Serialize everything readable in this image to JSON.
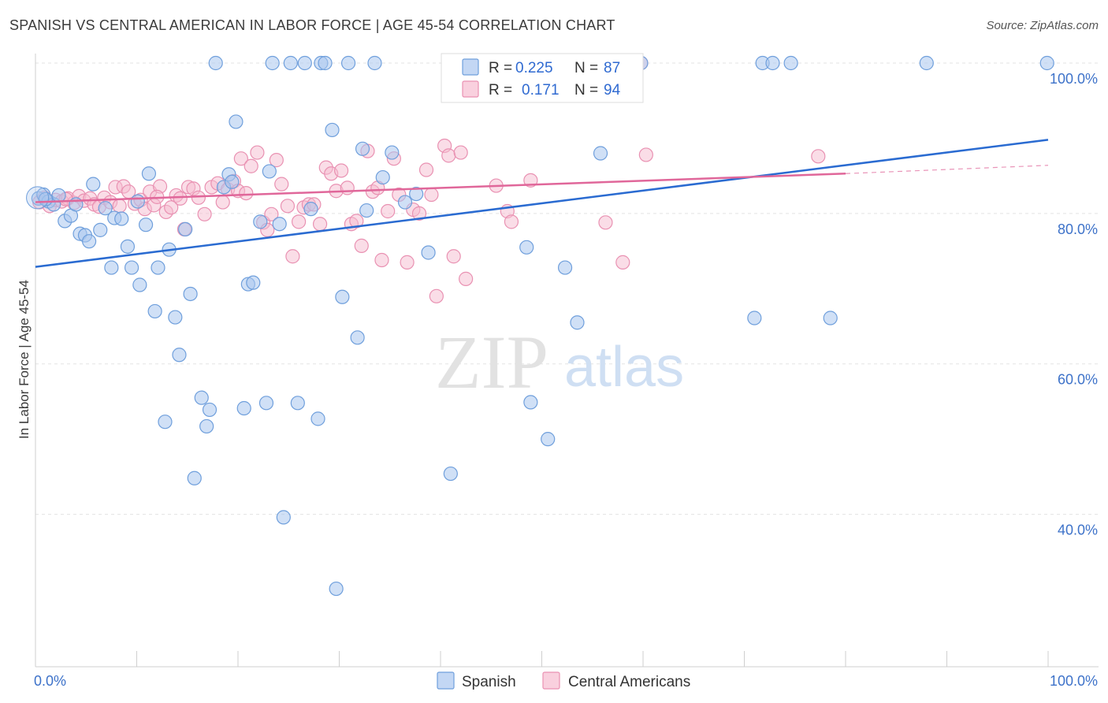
{
  "header": {
    "title": "SPANISH VS CENTRAL AMERICAN IN LABOR FORCE | AGE 45-54 CORRELATION CHART",
    "source": "Source: ZipAtlas.com"
  },
  "legend": {
    "r_label": "R =",
    "n_label": "N =",
    "spanish_r": "0.225",
    "spanish_n": "87",
    "central_r": "0.171",
    "central_n": "94"
  },
  "bottom_legend": {
    "spanish": "Spanish",
    "central": "Central Americans"
  },
  "watermark": {
    "zip": "ZIP",
    "atlas": "atlas"
  },
  "colors": {
    "spanish_fill": "#a9c6ef",
    "spanish_stroke": "#6f9fdc",
    "spanish_line": "#2a6bd1",
    "central_fill": "#f6bcd0",
    "central_stroke": "#e991b2",
    "central_line": "#e0679a",
    "tick_text": "#3d72c9",
    "grid": "#e3e3e3"
  },
  "chart_data": {
    "type": "scatter",
    "title": "SPANISH VS CENTRAL AMERICAN IN LABOR FORCE | AGE 45-54 CORRELATION CHART",
    "xlabel": "",
    "ylabel": "In Labor Force | Age 45-54",
    "xlim": [
      0,
      100
    ],
    "ylim": [
      20,
      102
    ],
    "x_tick_labels": [
      "0.0%",
      "100.0%"
    ],
    "y_ticks": [
      40,
      60,
      80,
      100
    ],
    "y_tick_labels": [
      "40.0%",
      "60.0%",
      "80.0%",
      "100.0%"
    ],
    "grid": true,
    "legend_position": "top-center",
    "series": [
      {
        "name": "Spanish",
        "r": 0.225,
        "n": 87,
        "trend": {
          "x": [
            0,
            100
          ],
          "y": [
            72.9,
            89.8
          ],
          "dashed_from": null
        },
        "points": [
          [
            0.3,
            82.0
          ],
          [
            0.8,
            82.5
          ],
          [
            1.3,
            81.6
          ],
          [
            1.8,
            81.2
          ],
          [
            2.3,
            82.4
          ],
          [
            2.9,
            79.0
          ],
          [
            3.5,
            79.7
          ],
          [
            4.0,
            81.2
          ],
          [
            4.4,
            77.3
          ],
          [
            4.9,
            77.1
          ],
          [
            5.3,
            76.3
          ],
          [
            5.7,
            83.9
          ],
          [
            6.4,
            77.8
          ],
          [
            6.9,
            80.7
          ],
          [
            7.5,
            72.8
          ],
          [
            7.8,
            79.4
          ],
          [
            8.5,
            79.3
          ],
          [
            9.1,
            75.6
          ],
          [
            9.5,
            72.8
          ],
          [
            10.1,
            81.6
          ],
          [
            10.3,
            70.5
          ],
          [
            10.9,
            78.5
          ],
          [
            11.2,
            85.3
          ],
          [
            11.8,
            67.0
          ],
          [
            12.1,
            72.8
          ],
          [
            12.8,
            52.3
          ],
          [
            13.2,
            75.2
          ],
          [
            13.8,
            66.2
          ],
          [
            14.2,
            61.2
          ],
          [
            14.8,
            77.9
          ],
          [
            15.3,
            69.3
          ],
          [
            15.7,
            44.8
          ],
          [
            16.4,
            55.5
          ],
          [
            16.9,
            51.7
          ],
          [
            17.2,
            53.9
          ],
          [
            17.8,
            100.0
          ],
          [
            18.6,
            83.5
          ],
          [
            19.1,
            85.2
          ],
          [
            19.4,
            84.2
          ],
          [
            19.8,
            92.2
          ],
          [
            20.6,
            54.1
          ],
          [
            21.0,
            70.6
          ],
          [
            21.5,
            70.8
          ],
          [
            22.2,
            78.9
          ],
          [
            22.8,
            54.8
          ],
          [
            23.1,
            85.6
          ],
          [
            23.4,
            100.0
          ],
          [
            24.1,
            78.6
          ],
          [
            24.5,
            39.6
          ],
          [
            25.2,
            100.0
          ],
          [
            25.9,
            54.8
          ],
          [
            26.6,
            100.0
          ],
          [
            27.2,
            80.6
          ],
          [
            27.9,
            52.7
          ],
          [
            28.2,
            100.0
          ],
          [
            28.6,
            100.0
          ],
          [
            29.3,
            91.1
          ],
          [
            29.7,
            30.1
          ],
          [
            30.3,
            68.9
          ],
          [
            30.9,
            100.0
          ],
          [
            31.8,
            63.5
          ],
          [
            32.3,
            88.6
          ],
          [
            32.7,
            80.4
          ],
          [
            33.5,
            100.0
          ],
          [
            34.3,
            84.8
          ],
          [
            35.2,
            88.1
          ],
          [
            36.5,
            81.5
          ],
          [
            37.6,
            82.6
          ],
          [
            38.8,
            74.8
          ],
          [
            41.0,
            45.4
          ],
          [
            48.1,
            100.0
          ],
          [
            48.5,
            75.5
          ],
          [
            48.9,
            54.9
          ],
          [
            50.6,
            50.0
          ],
          [
            52.3,
            72.8
          ],
          [
            52.8,
            100.0
          ],
          [
            53.5,
            65.5
          ],
          [
            55.8,
            88.0
          ],
          [
            59.8,
            100.0
          ],
          [
            71.0,
            66.1
          ],
          [
            71.8,
            100.0
          ],
          [
            72.8,
            100.0
          ],
          [
            74.6,
            100.0
          ],
          [
            78.5,
            66.1
          ],
          [
            88.0,
            100.0
          ],
          [
            99.9,
            100.0
          ],
          [
            1.0,
            81.9
          ]
        ]
      },
      {
        "name": "Central Americans",
        "r": 0.171,
        "n": 94,
        "trend": {
          "x": [
            0,
            80,
            100
          ],
          "y": [
            81.5,
            85.3,
            86.4
          ],
          "dashed_from": 80
        },
        "points": [
          [
            0.4,
            81.5
          ],
          [
            0.9,
            82.1
          ],
          [
            1.4,
            81.0
          ],
          [
            2.0,
            81.8
          ],
          [
            2.6,
            81.6
          ],
          [
            3.2,
            82.0
          ],
          [
            3.8,
            81.4
          ],
          [
            4.3,
            82.3
          ],
          [
            4.8,
            81.7
          ],
          [
            5.4,
            82.0
          ],
          [
            5.8,
            81.2
          ],
          [
            6.3,
            80.9
          ],
          [
            6.8,
            82.1
          ],
          [
            7.4,
            81.5
          ],
          [
            7.9,
            83.5
          ],
          [
            8.3,
            81.0
          ],
          [
            8.7,
            83.6
          ],
          [
            9.2,
            82.9
          ],
          [
            9.8,
            81.3
          ],
          [
            10.4,
            81.8
          ],
          [
            10.8,
            80.6
          ],
          [
            11.3,
            82.9
          ],
          [
            11.7,
            81.1
          ],
          [
            12.3,
            83.6
          ],
          [
            12.9,
            80.2
          ],
          [
            13.4,
            80.8
          ],
          [
            13.9,
            82.4
          ],
          [
            14.3,
            82.0
          ],
          [
            14.7,
            77.9
          ],
          [
            15.1,
            83.5
          ],
          [
            15.6,
            83.3
          ],
          [
            16.1,
            82.1
          ],
          [
            16.7,
            79.9
          ],
          [
            17.4,
            83.5
          ],
          [
            18.0,
            84.0
          ],
          [
            18.5,
            81.5
          ],
          [
            19.0,
            83.2
          ],
          [
            19.6,
            84.3
          ],
          [
            20.0,
            83.0
          ],
          [
            20.3,
            87.3
          ],
          [
            20.8,
            82.7
          ],
          [
            21.3,
            86.3
          ],
          [
            21.9,
            88.1
          ],
          [
            22.5,
            78.8
          ],
          [
            22.9,
            77.8
          ],
          [
            23.3,
            79.9
          ],
          [
            23.8,
            87.1
          ],
          [
            24.3,
            83.9
          ],
          [
            24.9,
            81.0
          ],
          [
            25.4,
            74.3
          ],
          [
            26.0,
            78.9
          ],
          [
            26.5,
            80.8
          ],
          [
            27.0,
            81.2
          ],
          [
            27.5,
            81.2
          ],
          [
            28.1,
            78.6
          ],
          [
            28.7,
            86.1
          ],
          [
            29.2,
            85.3
          ],
          [
            29.7,
            83.0
          ],
          [
            30.2,
            85.7
          ],
          [
            30.8,
            83.4
          ],
          [
            31.2,
            78.6
          ],
          [
            31.7,
            79.0
          ],
          [
            32.2,
            75.7
          ],
          [
            32.8,
            88.3
          ],
          [
            33.3,
            82.9
          ],
          [
            33.8,
            83.4
          ],
          [
            34.2,
            73.8
          ],
          [
            34.8,
            80.3
          ],
          [
            35.4,
            87.3
          ],
          [
            35.9,
            82.5
          ],
          [
            36.7,
            73.5
          ],
          [
            37.3,
            80.5
          ],
          [
            37.9,
            80.0
          ],
          [
            38.6,
            85.8
          ],
          [
            39.1,
            82.5
          ],
          [
            39.6,
            69.0
          ],
          [
            40.4,
            89.0
          ],
          [
            40.8,
            87.7
          ],
          [
            41.3,
            74.3
          ],
          [
            42.0,
            88.1
          ],
          [
            42.5,
            71.3
          ],
          [
            45.5,
            83.7
          ],
          [
            46.6,
            80.3
          ],
          [
            47.0,
            78.9
          ],
          [
            48.9,
            84.4
          ],
          [
            54.0,
            100.0
          ],
          [
            55.3,
            100.0
          ],
          [
            56.3,
            78.8
          ],
          [
            58.0,
            73.5
          ],
          [
            59.8,
            100.0
          ],
          [
            60.3,
            87.8
          ],
          [
            77.3,
            87.6
          ],
          [
            3.0,
            81.9
          ],
          [
            12.0,
            82.2
          ]
        ]
      }
    ]
  }
}
